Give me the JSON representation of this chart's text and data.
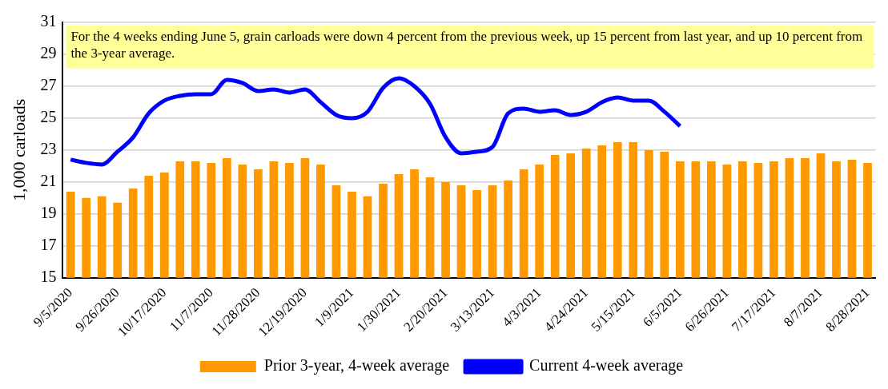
{
  "chart_data": {
    "type": "bar",
    "ylabel": "1,000 carloads",
    "annotations": [
      "For the 4 weeks ending June 5, grain carloads were down 4 percent from the previous week, up 15 percent from last year, and up 10 percent from the 3-year average."
    ],
    "categories": [
      "9/5/2020",
      null,
      null,
      "9/26/2020",
      null,
      null,
      "10/17/2020",
      null,
      null,
      "11/7/2020",
      null,
      null,
      "11/28/2020",
      null,
      null,
      "12/19/2020",
      null,
      null,
      "1/9/2021",
      null,
      null,
      "1/30/2021",
      null,
      null,
      "2/20/2021",
      null,
      null,
      "3/13/2021",
      null,
      null,
      "4/3/2021",
      null,
      null,
      "4/24/2021",
      null,
      null,
      "5/15/2021",
      null,
      null,
      "6/5/2021",
      null,
      null,
      "6/26/2021",
      null,
      null,
      "7/17/2021",
      null,
      null,
      "8/7/2021",
      null,
      null,
      "8/28/2021"
    ],
    "series": [
      {
        "name": "Prior 3-year, 4-week average",
        "color": "#ff9900",
        "values": [
          20.4,
          20.0,
          20.1,
          19.7,
          20.6,
          21.4,
          21.6,
          22.3,
          22.3,
          22.2,
          22.5,
          22.1,
          21.8,
          22.3,
          22.2,
          22.5,
          22.1,
          20.8,
          20.4,
          20.1,
          20.9,
          21.5,
          21.8,
          21.3,
          21.0,
          20.8,
          20.5,
          20.8,
          21.1,
          21.8,
          22.1,
          22.7,
          22.8,
          23.1,
          23.3,
          23.5,
          23.5,
          23.0,
          22.9,
          22.3,
          22.3,
          22.3,
          22.1,
          22.3,
          22.2,
          22.3,
          22.5,
          22.5,
          22.8,
          22.3,
          22.4,
          22.2
        ]
      },
      {
        "name": "Current 4-week average",
        "type": "line",
        "color": "#0000ff",
        "values": [
          22.4,
          22.2,
          22.1,
          22.9,
          23.8,
          25.3,
          26.1,
          26.4,
          26.5,
          26.5,
          27.4,
          27.2,
          26.7,
          26.8,
          26.6,
          26.8,
          26.0,
          25.2,
          25.0,
          25.4,
          26.9,
          27.5,
          27.0,
          25.9,
          23.8,
          22.8,
          22.9,
          23.2,
          25.3,
          25.6,
          25.4,
          25.5,
          25.2,
          25.4,
          26.0,
          26.3,
          26.1,
          26.1,
          25.4,
          24.5,
          null,
          null,
          null,
          null,
          null,
          null,
          null,
          null,
          null,
          null,
          null,
          null
        ]
      }
    ],
    "ylim": [
      15,
      31
    ],
    "yticks": [
      15,
      17,
      19,
      21,
      23,
      25,
      27,
      29,
      31
    ],
    "grid": "y",
    "legend": "bottom",
    "marker": "none"
  }
}
